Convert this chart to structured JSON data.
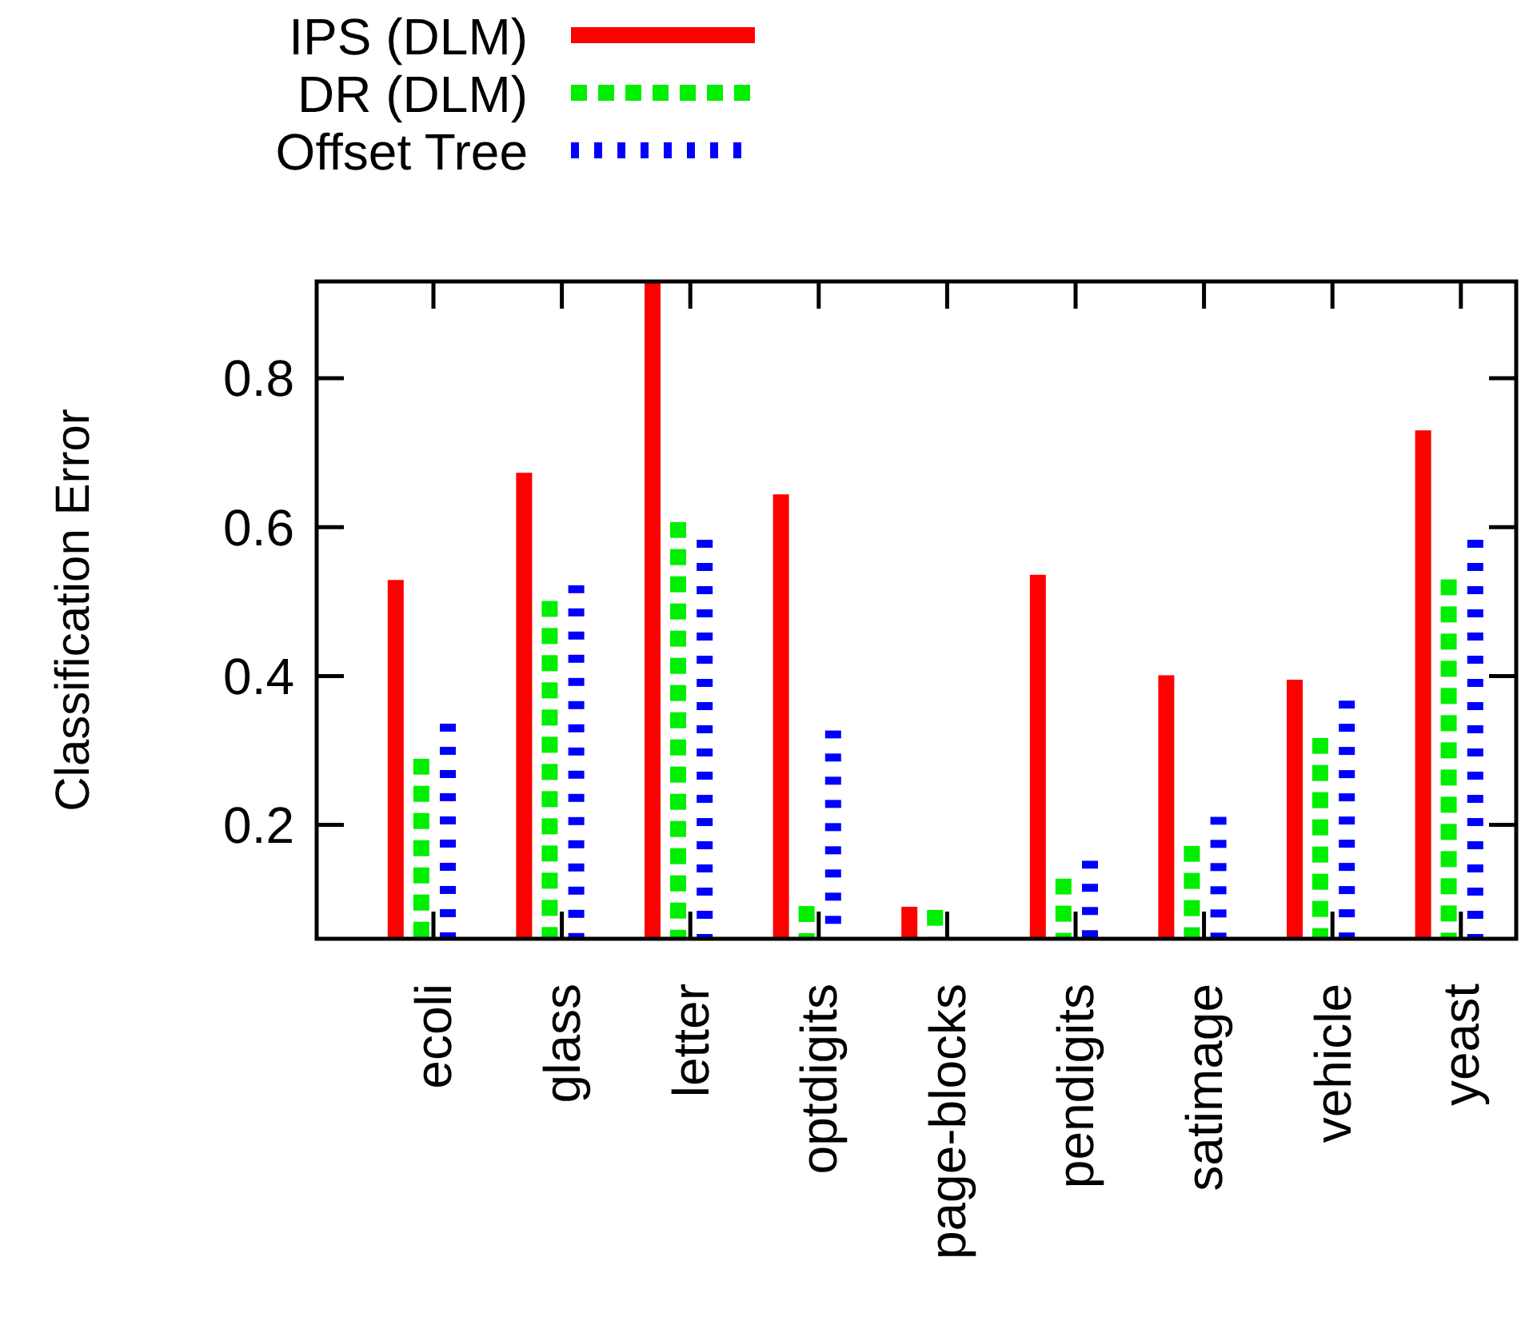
{
  "chart_data": {
    "type": "bar",
    "ylabel": "Classification Error",
    "categories": [
      "ecoli",
      "glass",
      "letter",
      "optdigits",
      "page-blocks",
      "pendigits",
      "satimage",
      "vehicle",
      "yeast"
    ],
    "series": [
      {
        "name": "IPS (DLM)",
        "color": "#ff0000",
        "line_style": "solid",
        "values": [
          0.529,
          0.673,
          0.93,
          0.644,
          0.09,
          0.536,
          0.401,
          0.395,
          0.73
        ]
      },
      {
        "name": "DR (DLM)",
        "color": "#00ee00",
        "line_style": "dashed",
        "values": [
          0.289,
          0.501,
          0.607,
          0.091,
          0.086,
          0.128,
          0.172,
          0.317,
          0.53
        ]
      },
      {
        "name": "Offset Tree",
        "color": "#0000ff",
        "line_style": "dotted",
        "values": [
          0.336,
          0.522,
          0.583,
          0.327,
          null,
          0.152,
          0.211,
          0.367,
          0.583
        ]
      }
    ],
    "ylim": [
      0.047,
      0.93
    ],
    "yticks": [
      0.2,
      0.4,
      0.6,
      0.8
    ],
    "legend": "top left"
  }
}
